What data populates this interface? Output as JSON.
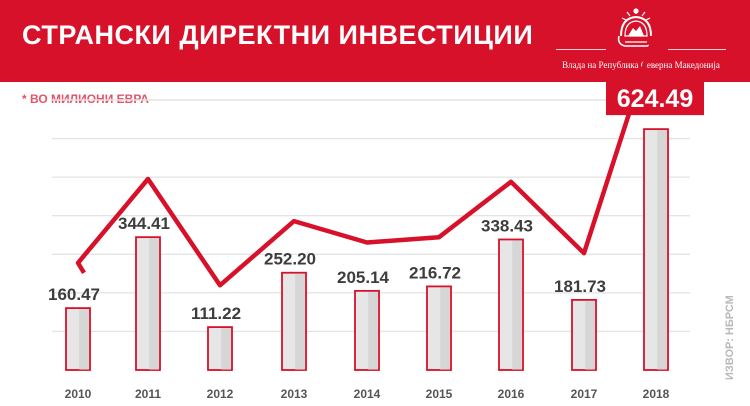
{
  "header": {
    "title": "СТРАНСКИ ДИРЕКТНИ ИНВЕСТИЦИИ",
    "gov_name": "Влада на Република Северна Македонија",
    "emblem_icon": "coat-of-arms-icon"
  },
  "subtitle": "* ВО МИЛИОНИ ЕВРА",
  "source": "ИЗВОР: НБРСМ",
  "colors": {
    "brand_red": "#d7112a",
    "bar_fill": "#e6e6e6",
    "bar_shadow": "#c9c9c9",
    "grid": "#e4e4e4",
    "text_dark": "#3d3d3d"
  },
  "chart_data": {
    "type": "bar",
    "title": "СТРАНСКИ ДИРЕКТНИ ИНВЕСТИЦИИ",
    "subtitle": "* ВО МИЛИОНИ ЕВРА",
    "categories": [
      "2010",
      "2011",
      "2012",
      "2013",
      "2014",
      "2015",
      "2016",
      "2017",
      "2018"
    ],
    "values": [
      160.47,
      344.41,
      111.22,
      252.2,
      205.14,
      216.72,
      338.43,
      181.73,
      624.49
    ],
    "value_labels": [
      "160.47",
      "344.41",
      "111.22",
      "252.20",
      "205.14",
      "216.72",
      "338.43",
      "181.73",
      "624.49"
    ],
    "ylim": [
      0,
      700
    ],
    "grid": true,
    "overlay": "red trend line connecting values, ending in arrow",
    "highlight": "2018"
  }
}
